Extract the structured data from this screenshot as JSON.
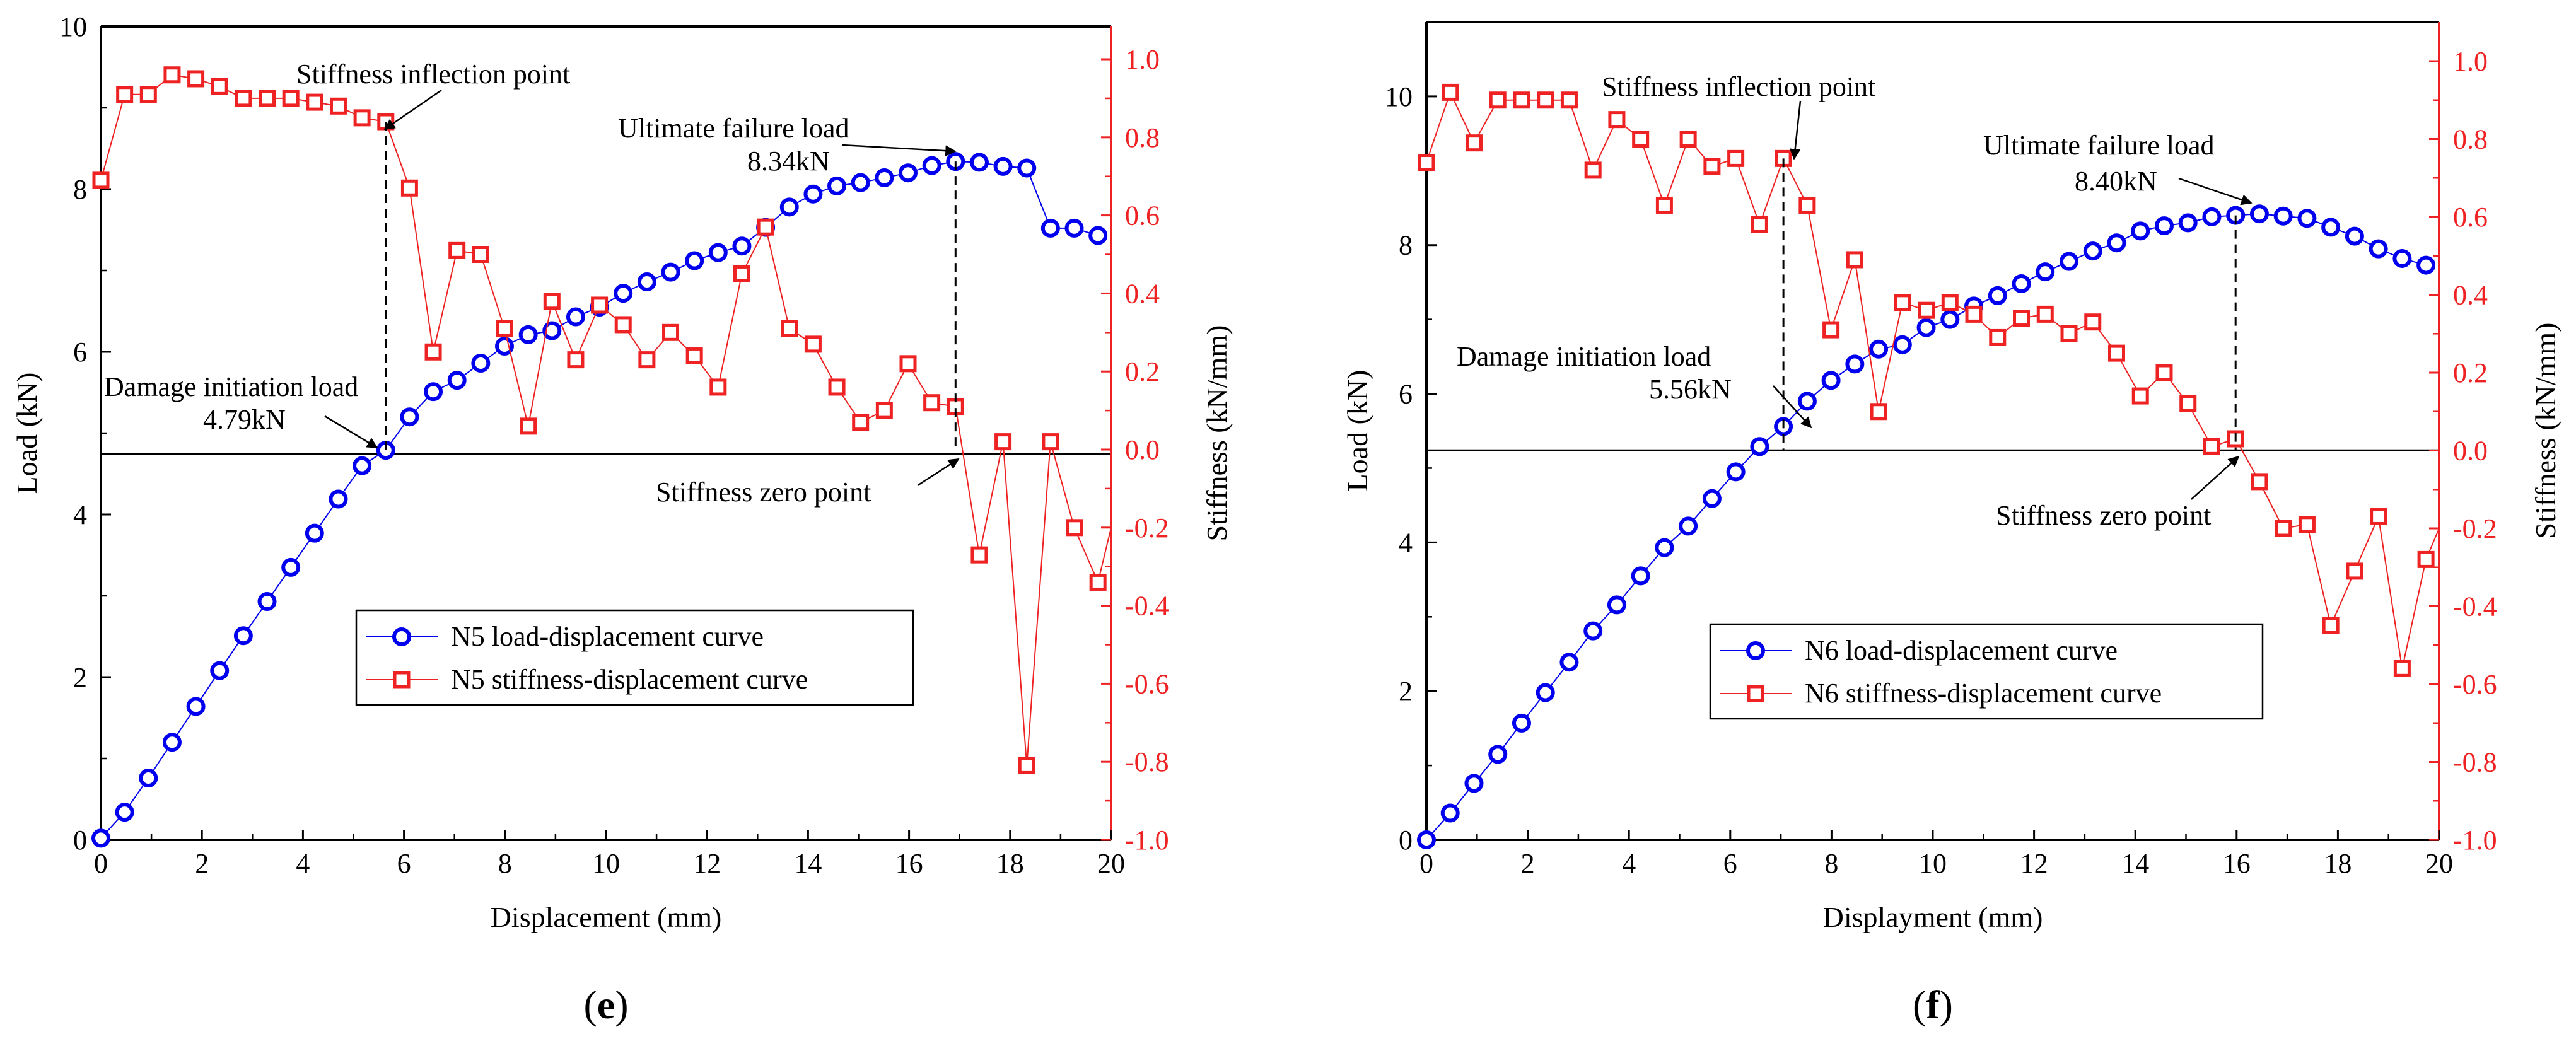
{
  "colors": {
    "load": "#0000ee",
    "stiffness": "#ee2222",
    "axis": "#000000",
    "annotation": "#000000"
  },
  "chart_data": [
    {
      "type": "line",
      "panel_label_open": "(",
      "panel_label_letter": "e",
      "panel_label_close": ")",
      "xlabel": "Displacement (mm)",
      "ylabel": "Load (kN)",
      "y2label": "Stiffness (kN/mm)",
      "xlim": [
        0,
        20
      ],
      "ylim": [
        0,
        10
      ],
      "y2lim": [
        -1.0,
        1.1
      ],
      "xticks": [
        "0",
        "2",
        "4",
        "6",
        "8",
        "10",
        "12",
        "14",
        "16",
        "18",
        "20"
      ],
      "yticks": [
        "0",
        "2",
        "4",
        "6",
        "8",
        "10"
      ],
      "y2ticks": [
        "-1.0",
        "-0.8",
        "-0.6",
        "-0.4",
        "-0.2",
        "0.0",
        "0.2",
        "0.4",
        "0.6",
        "0.8",
        "1.0"
      ],
      "grid": false,
      "legend_position": "lower-center",
      "series": [
        {
          "name": "N5 load-displacement curve",
          "axis": "left",
          "marker": "circle",
          "x": [
            0,
            0.47,
            0.94,
            1.41,
            1.88,
            2.35,
            2.82,
            3.29,
            3.76,
            4.23,
            4.7,
            5.17,
            5.64,
            6.11,
            6.58,
            7.05,
            7.52,
            7.99,
            8.46,
            8.93,
            9.4,
            9.87,
            10.34,
            10.81,
            11.28,
            11.75,
            12.22,
            12.69,
            13.16,
            13.63,
            14.1,
            14.57,
            15.04,
            15.51,
            15.98,
            16.45,
            16.92,
            17.39,
            17.86,
            18.33,
            18.8,
            19.27,
            19.74
          ],
          "y": [
            0.02,
            0.34,
            0.76,
            1.2,
            1.64,
            2.08,
            2.51,
            2.93,
            3.35,
            3.77,
            4.19,
            4.6,
            4.79,
            5.2,
            5.51,
            5.65,
            5.86,
            6.07,
            6.21,
            6.26,
            6.43,
            6.55,
            6.72,
            6.86,
            6.98,
            7.12,
            7.22,
            7.3,
            7.53,
            7.78,
            7.94,
            8.04,
            8.08,
            8.14,
            8.2,
            8.29,
            8.34,
            8.33,
            8.28,
            8.26,
            7.52,
            7.52,
            7.43
          ]
        },
        {
          "name": "N5 stiffness-displacement curve",
          "axis": "right",
          "marker": "square",
          "x": [
            0,
            0.47,
            0.94,
            1.41,
            1.88,
            2.35,
            2.82,
            3.29,
            3.76,
            4.23,
            4.7,
            5.17,
            5.64,
            6.11,
            6.58,
            7.05,
            7.52,
            7.99,
            8.46,
            8.93,
            9.4,
            9.87,
            10.34,
            10.81,
            11.28,
            11.75,
            12.22,
            12.69,
            13.16,
            13.63,
            14.1,
            14.57,
            15.04,
            15.51,
            15.98,
            16.45,
            16.92,
            17.39,
            17.86,
            18.33,
            18.8,
            19.27,
            19.74,
            20
          ],
          "y": [
            0.69,
            0.91,
            0.91,
            0.96,
            0.95,
            0.93,
            0.9,
            0.9,
            0.9,
            0.89,
            0.88,
            0.85,
            0.84,
            0.67,
            0.25,
            0.51,
            0.5,
            0.31,
            0.06,
            0.38,
            0.23,
            0.37,
            0.32,
            0.23,
            0.3,
            0.24,
            0.16,
            0.45,
            0.57,
            0.31,
            0.27,
            0.16,
            0.07,
            0.1,
            0.22,
            0.12,
            0.11,
            -0.27,
            0.02,
            -0.81,
            0.02,
            -0.2,
            -0.34,
            -0.2
          ]
        }
      ],
      "annotations": {
        "inflection": {
          "text": "Stiffness inflection point",
          "x": 5.64,
          "y2": 0.84
        },
        "ultimate_text": "Ultimate failure load",
        "ultimate_value": "8.34kN",
        "ultimate": {
          "x": 16.92,
          "y": 8.34
        },
        "damage_text": "Damage initiation load",
        "damage_value": "4.79kN",
        "damage": {
          "x": 5.64,
          "y": 4.79
        },
        "zero": {
          "text": "Stiffness zero point",
          "x": 16.92,
          "y2": 0.0
        }
      }
    },
    {
      "type": "line",
      "panel_label_open": "(",
      "panel_label_letter": "f",
      "panel_label_close": ")",
      "xlabel": "Displayment (mm)",
      "ylabel": "Load (kN)",
      "y2label": "Stiffness (kN/mm)",
      "xlim": [
        0,
        20
      ],
      "ylim": [
        0,
        11
      ],
      "y2lim": [
        -1.0,
        1.1
      ],
      "xticks": [
        "0",
        "2",
        "4",
        "6",
        "8",
        "10",
        "12",
        "14",
        "16",
        "18",
        "20"
      ],
      "yticks": [
        "0",
        "2",
        "4",
        "6",
        "8",
        "10"
      ],
      "y2ticks": [
        "-1.0",
        "-0.8",
        "-0.6",
        "-0.4",
        "-0.2",
        "0.0",
        "0.2",
        "0.4",
        "0.6",
        "0.8",
        "1.0"
      ],
      "grid": false,
      "legend_position": "lower-center",
      "series": [
        {
          "name": "N6 load-displacement curve",
          "axis": "left",
          "marker": "circle",
          "x": [
            0,
            0.47,
            0.94,
            1.41,
            1.88,
            2.35,
            2.82,
            3.29,
            3.76,
            4.23,
            4.7,
            5.17,
            5.64,
            6.11,
            6.58,
            7.05,
            7.52,
            7.99,
            8.46,
            8.93,
            9.4,
            9.87,
            10.34,
            10.81,
            11.28,
            11.75,
            12.22,
            12.69,
            13.16,
            13.63,
            14.1,
            14.57,
            15.04,
            15.51,
            15.98,
            16.45,
            16.92,
            17.39,
            17.86,
            18.33,
            18.8,
            19.27,
            19.74
          ],
          "y": [
            0.0,
            0.36,
            0.76,
            1.15,
            1.57,
            1.98,
            2.39,
            2.81,
            3.16,
            3.55,
            3.93,
            4.22,
            4.59,
            4.95,
            5.29,
            5.56,
            5.9,
            6.18,
            6.4,
            6.6,
            6.66,
            6.89,
            7.0,
            7.18,
            7.32,
            7.48,
            7.64,
            7.78,
            7.92,
            8.03,
            8.19,
            8.26,
            8.3,
            8.38,
            8.4,
            8.42,
            8.39,
            8.36,
            8.24,
            8.12,
            7.95,
            7.82,
            7.73
          ]
        },
        {
          "name": "N6 stiffness-displacement curve",
          "axis": "right",
          "marker": "square",
          "x": [
            0,
            0.47,
            0.94,
            1.41,
            1.88,
            2.35,
            2.82,
            3.29,
            3.76,
            4.23,
            4.7,
            5.17,
            5.64,
            6.11,
            6.58,
            7.05,
            7.52,
            7.99,
            8.46,
            8.93,
            9.4,
            9.87,
            10.34,
            10.81,
            11.28,
            11.75,
            12.22,
            12.69,
            13.16,
            13.63,
            14.1,
            14.57,
            15.04,
            15.51,
            15.98,
            16.45,
            16.92,
            17.39,
            17.86,
            18.33,
            18.8,
            19.27,
            19.74,
            20
          ],
          "y": [
            0.74,
            0.92,
            0.79,
            0.9,
            0.9,
            0.9,
            0.9,
            0.72,
            0.85,
            0.8,
            0.63,
            0.8,
            0.73,
            0.75,
            0.58,
            0.75,
            0.63,
            0.31,
            0.49,
            0.1,
            0.38,
            0.36,
            0.38,
            0.35,
            0.29,
            0.34,
            0.35,
            0.3,
            0.33,
            0.25,
            0.14,
            0.2,
            0.12,
            0.01,
            0.03,
            -0.08,
            -0.2,
            -0.19,
            -0.45,
            -0.31,
            -0.17,
            -0.56,
            -0.28,
            -0.2
          ]
        }
      ],
      "annotations": {
        "inflection": {
          "text": "Stiffness inflection point",
          "x": 7.05,
          "y2": 0.75
        },
        "ultimate_text": "Ultimate failure load",
        "ultimate_value": "8.40kN",
        "ultimate": {
          "x": 15.98,
          "y": 8.4
        },
        "damage_text": "Damage initiation load",
        "damage_value": "5.56kN",
        "damage": {
          "x": 7.05,
          "y": 5.56
        },
        "zero": {
          "text": "Stiffness zero point",
          "x": 15.98,
          "y2": 0.0
        }
      }
    }
  ]
}
